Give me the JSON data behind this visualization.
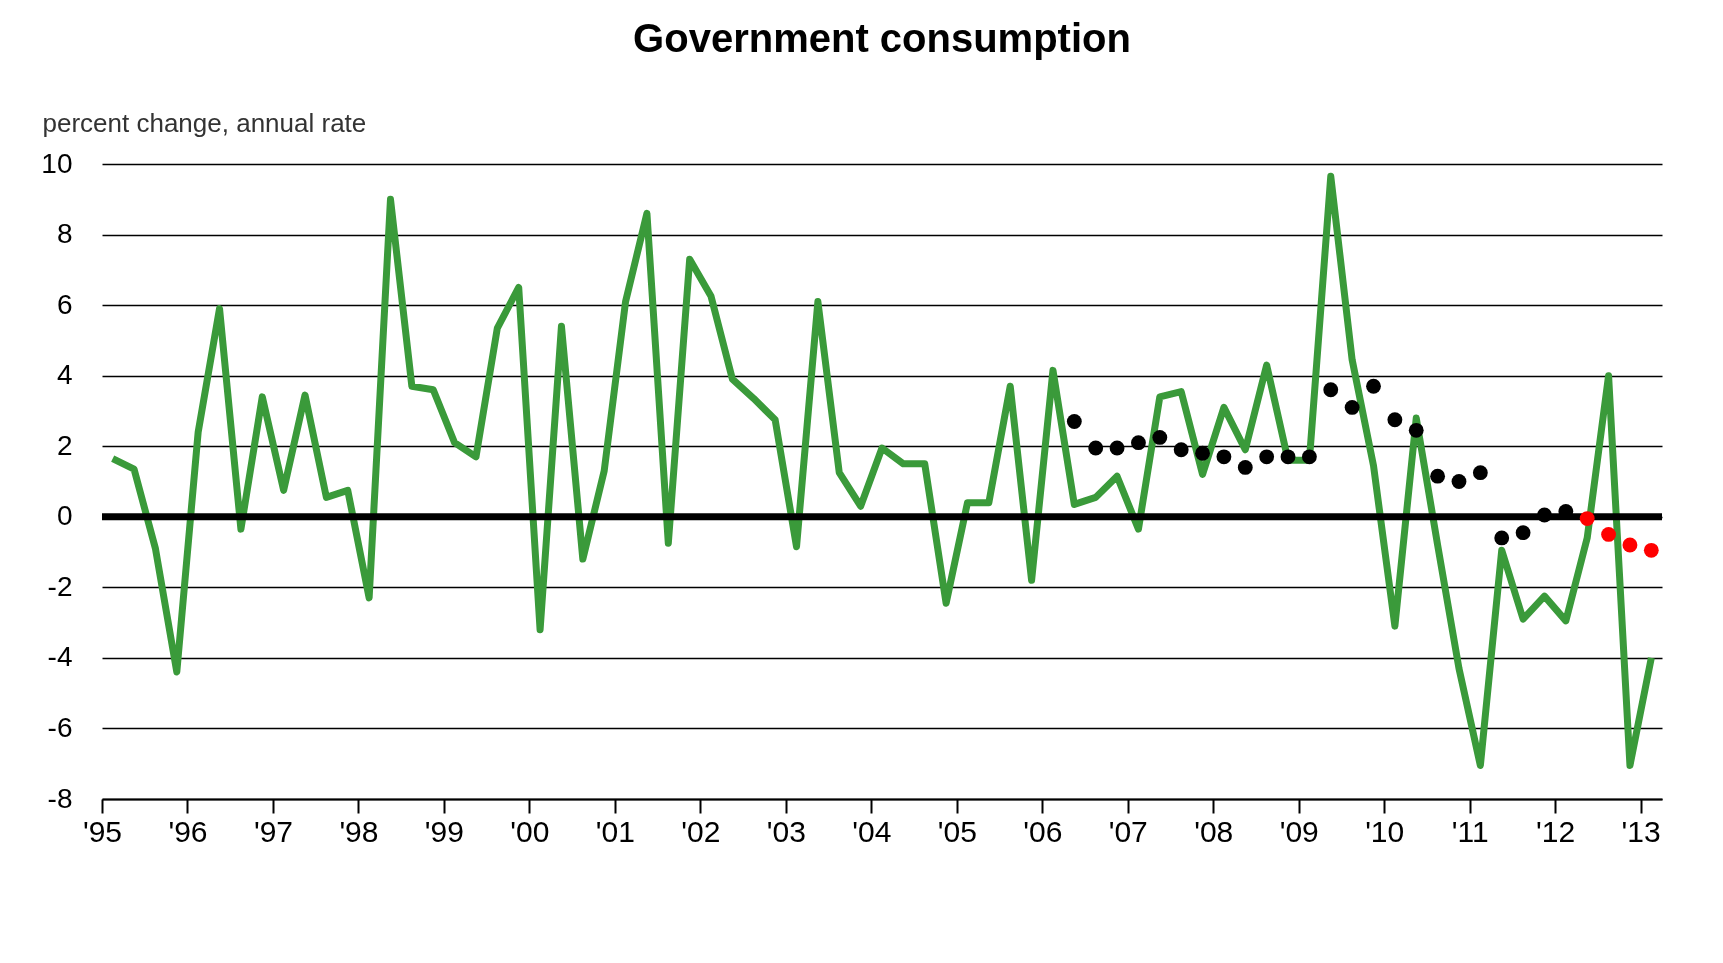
{
  "chart_data": {
    "type": "line",
    "title": "Government consumption",
    "ylabel": "percent change, annual rate",
    "xlim": [
      1995,
      2013.25
    ],
    "ylim": [
      -8,
      10
    ],
    "yticks": [
      -8,
      -6,
      -4,
      -2,
      0,
      2,
      4,
      6,
      8,
      10
    ],
    "xticks": [
      {
        "value": 1995,
        "label": "'95"
      },
      {
        "value": 1996,
        "label": "'96"
      },
      {
        "value": 1997,
        "label": "'97"
      },
      {
        "value": 1998,
        "label": "'98"
      },
      {
        "value": 1999,
        "label": "'99"
      },
      {
        "value": 2000,
        "label": "'00"
      },
      {
        "value": 2001,
        "label": "'01"
      },
      {
        "value": 2002,
        "label": "'02"
      },
      {
        "value": 2003,
        "label": "'03"
      },
      {
        "value": 2004,
        "label": "'04"
      },
      {
        "value": 2005,
        "label": "'05"
      },
      {
        "value": 2006,
        "label": "'06"
      },
      {
        "value": 2007,
        "label": "'07"
      },
      {
        "value": 2008,
        "label": "'08"
      },
      {
        "value": 2009,
        "label": "'09"
      },
      {
        "value": 2010,
        "label": "'10"
      },
      {
        "value": 2011,
        "label": "'11"
      },
      {
        "value": 2012,
        "label": "'12"
      },
      {
        "value": 2013,
        "label": "'13"
      }
    ],
    "grid": "y",
    "ref_lines": [
      {
        "axis": "y",
        "value": 0,
        "color": "#000000"
      }
    ],
    "series": [
      {
        "color": "#3a9a3a",
        "marker": "none",
        "x": [
          1995.125,
          1995.375,
          1995.625,
          1995.875,
          1996.125,
          1996.375,
          1996.625,
          1996.875,
          1997.125,
          1997.375,
          1997.625,
          1997.875,
          1998.125,
          1998.375,
          1998.625,
          1998.875,
          1999.125,
          1999.375,
          1999.625,
          1999.875,
          2000.125,
          2000.375,
          2000.625,
          2000.875,
          2001.125,
          2001.375,
          2001.625,
          2001.875,
          2002.125,
          2002.375,
          2002.625,
          2002.875,
          2003.125,
          2003.375,
          2003.625,
          2003.875,
          2004.125,
          2004.375,
          2004.625,
          2004.875,
          2005.125,
          2005.375,
          2005.625,
          2005.875,
          2006.125,
          2006.375,
          2006.625,
          2006.875,
          2007.125,
          2007.375,
          2007.625,
          2007.875,
          2008.125,
          2008.375,
          2008.625,
          2008.875,
          2009.125,
          2009.375,
          2009.625,
          2009.875,
          2010.125,
          2010.375,
          2010.625,
          2010.875,
          2011.125,
          2011.375,
          2011.625,
          2011.875,
          2012.125,
          2012.375,
          2012.625,
          2012.875,
          2013.125
        ],
        "values": [
          1.65,
          1.35,
          -0.9,
          -4.4,
          2.4,
          5.9,
          -0.35,
          3.4,
          0.75,
          3.45,
          0.55,
          0.75,
          -2.3,
          9.0,
          3.7,
          3.6,
          2.1,
          1.7,
          5.35,
          6.5,
          -3.2,
          5.4,
          -1.2,
          1.3,
          6.1,
          8.6,
          -0.75,
          7.3,
          6.25,
          3.9,
          3.35,
          2.75,
          -0.85,
          6.1,
          1.25,
          0.3,
          1.95,
          1.5,
          1.5,
          -2.45,
          0.4,
          0.4,
          3.7,
          -1.8,
          4.15,
          0.35,
          0.55,
          1.15,
          -0.35,
          3.4,
          3.55,
          1.2,
          3.1,
          1.9,
          4.3,
          1.6,
          1.6,
          9.65,
          4.45,
          1.45,
          -3.1,
          2.8,
          -0.8,
          -4.3,
          -7.05,
          -0.95,
          -2.9,
          -2.25,
          -2.95,
          -0.6,
          4.0,
          -7.05,
          -4.0
        ]
      },
      {
        "type": "scatter",
        "color": "#000000",
        "marker": "circle",
        "x": [
          2006.375,
          2006.625,
          2006.875,
          2007.125,
          2007.375,
          2007.625,
          2007.875,
          2008.125,
          2008.375,
          2008.625,
          2008.875,
          2009.125,
          2009.375,
          2009.625,
          2009.875,
          2010.125,
          2010.375,
          2010.625,
          2010.875,
          2011.125,
          2011.375,
          2011.625,
          2011.875,
          2012.125
        ],
        "values": [
          2.7,
          1.95,
          1.95,
          2.1,
          2.25,
          1.9,
          1.8,
          1.7,
          1.4,
          1.7,
          1.7,
          1.7,
          3.6,
          3.1,
          3.7,
          2.75,
          2.45,
          1.15,
          1.0,
          1.25,
          -0.6,
          -0.45,
          0.05,
          0.15
        ]
      },
      {
        "type": "scatter",
        "color": "#ff0000",
        "marker": "circle",
        "x": [
          2012.375,
          2012.625,
          2012.875,
          2013.125
        ],
        "values": [
          -0.05,
          -0.5,
          -0.8,
          -0.95
        ]
      }
    ]
  }
}
